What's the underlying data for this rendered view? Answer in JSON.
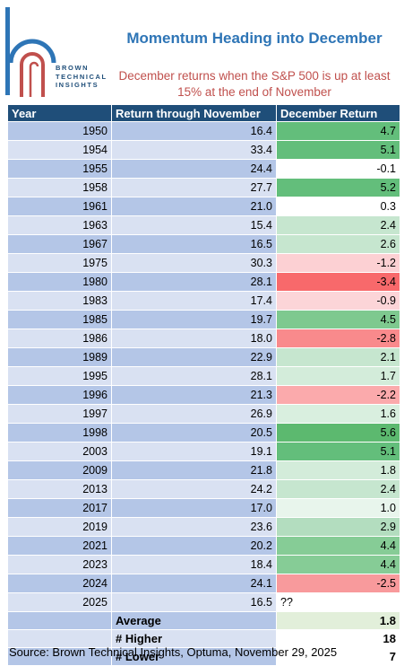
{
  "logo": {
    "brand_lines": [
      "BROWN",
      "TECHNICAL",
      "INSIGHTS"
    ],
    "colors": {
      "blue": "#2e75b6",
      "red": "#c0504d"
    }
  },
  "title": "Momentum Heading into December",
  "subtitle": "December returns when the S&P 500 is up at least 15% at the end of November",
  "columns": [
    "Year",
    "Return through November",
    "December Return"
  ],
  "rows": [
    {
      "year": "1950",
      "nov": "16.4",
      "dec": "4.7",
      "color": "#63be7b"
    },
    {
      "year": "1954",
      "nov": "33.4",
      "dec": "5.1",
      "color": "#63be7b"
    },
    {
      "year": "1955",
      "nov": "24.4",
      "dec": "-0.1",
      "color": "#ffffff"
    },
    {
      "year": "1958",
      "nov": "27.7",
      "dec": "5.2",
      "color": "#63be7b"
    },
    {
      "year": "1961",
      "nov": "21.0",
      "dec": "0.3",
      "color": "#ffffff"
    },
    {
      "year": "1963",
      "nov": "15.4",
      "dec": "2.4",
      "color": "#c6e6cf"
    },
    {
      "year": "1967",
      "nov": "16.5",
      "dec": "2.6",
      "color": "#c6e6cf"
    },
    {
      "year": "1975",
      "nov": "30.3",
      "dec": "-1.2",
      "color": "#fcd0d3"
    },
    {
      "year": "1980",
      "nov": "28.1",
      "dec": "-3.4",
      "color": "#f8696b"
    },
    {
      "year": "1983",
      "nov": "17.4",
      "dec": "-0.9",
      "color": "#fcd5d8"
    },
    {
      "year": "1985",
      "nov": "19.7",
      "dec": "4.5",
      "color": "#7ec98f"
    },
    {
      "year": "1986",
      "nov": "18.0",
      "dec": "-2.8",
      "color": "#f98a8c"
    },
    {
      "year": "1989",
      "nov": "22.9",
      "dec": "2.1",
      "color": "#c6e6cf"
    },
    {
      "year": "1995",
      "nov": "28.1",
      "dec": "1.7",
      "color": "#d3ecda"
    },
    {
      "year": "1996",
      "nov": "21.3",
      "dec": "-2.2",
      "color": "#fbaaac"
    },
    {
      "year": "1997",
      "nov": "26.9",
      "dec": "1.6",
      "color": "#d9efdf"
    },
    {
      "year": "1998",
      "nov": "20.5",
      "dec": "5.6",
      "color": "#5cb96f"
    },
    {
      "year": "2003",
      "nov": "19.1",
      "dec": "5.1",
      "color": "#63be7b"
    },
    {
      "year": "2009",
      "nov": "21.8",
      "dec": "1.8",
      "color": "#d3ecda"
    },
    {
      "year": "2013",
      "nov": "24.2",
      "dec": "2.4",
      "color": "#c6e6cf"
    },
    {
      "year": "2017",
      "nov": "17.0",
      "dec": "1.0",
      "color": "#e8f5ec"
    },
    {
      "year": "2019",
      "nov": "23.6",
      "dec": "2.9",
      "color": "#b3ddbf"
    },
    {
      "year": "2021",
      "nov": "20.2",
      "dec": "4.4",
      "color": "#86cc96"
    },
    {
      "year": "2023",
      "nov": "18.4",
      "dec": "4.4",
      "color": "#86cc96"
    },
    {
      "year": "2024",
      "nov": "24.1",
      "dec": "-2.5",
      "color": "#f89a9c"
    },
    {
      "year": "2025",
      "nov": "16.5",
      "dec": "??",
      "color": "#ffffff",
      "dec_align": "left"
    }
  ],
  "summary": [
    {
      "label": "Average",
      "value": "1.8"
    },
    {
      "label": "# Higher",
      "value": "18"
    },
    {
      "label": "# Lower",
      "value": "7"
    }
  ],
  "source": "Source: Brown Technical Insights, Optuma, November 29, 2025"
}
